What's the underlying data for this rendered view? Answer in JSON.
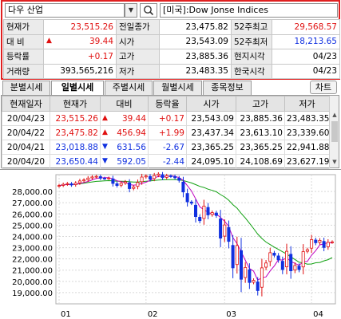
{
  "search": {
    "name": "다우 산업",
    "description": "[미국]:Dow Jonse Indices"
  },
  "quote": {
    "rows": [
      [
        {
          "label": "현재가"
        },
        {
          "value": "23,515.26",
          "color": "red"
        },
        {
          "label": "전일종가"
        },
        {
          "value": "23,475.82"
        },
        {
          "label": "52주최고"
        },
        {
          "value": "29,568.57",
          "color": "red"
        }
      ],
      [
        {
          "label": "대 비"
        },
        {
          "value": "39.44",
          "color": "red",
          "arrow": "▲"
        },
        {
          "label": "시가"
        },
        {
          "value": "23,543.09"
        },
        {
          "label": "52주최저"
        },
        {
          "value": "18,213.65",
          "color": "blue"
        }
      ],
      [
        {
          "label": "등락률"
        },
        {
          "value": "+0.17",
          "color": "red"
        },
        {
          "label": "고가"
        },
        {
          "value": "23,885.36"
        },
        {
          "label": "현지시각"
        },
        {
          "value": "04/23"
        }
      ],
      [
        {
          "label": "거래량"
        },
        {
          "value": "393,565,216"
        },
        {
          "label": "저가"
        },
        {
          "value": "23,483.35"
        },
        {
          "label": "한국시각"
        },
        {
          "value": "04/23"
        }
      ]
    ]
  },
  "tabs": {
    "items": [
      "분별시세",
      "일별시세",
      "주별시세",
      "월별시세",
      "종목정보"
    ],
    "active": 1,
    "chart_button": "차트"
  },
  "daily": {
    "headers": [
      "현재일자",
      "현재가",
      "대비",
      "등락율",
      "시가",
      "고가",
      "저가"
    ],
    "rows": [
      {
        "date": "20/04/23",
        "close": "23,515.26",
        "arrow": "▲",
        "change": "39.44",
        "rate": "+0.17",
        "open": "23,543.09",
        "high": "23,885.36",
        "low": "23,483.35",
        "color": "red"
      },
      {
        "date": "20/04/22",
        "close": "23,475.82",
        "arrow": "▲",
        "change": "456.94",
        "rate": "+1.99",
        "open": "23,437.34",
        "high": "23,613.10",
        "low": "23,339.60",
        "color": "red"
      },
      {
        "date": "20/04/21",
        "close": "23,018.88",
        "arrow": "▼",
        "change": "631.56",
        "rate": "-2.67",
        "open": "23,365.25",
        "high": "23,365.25",
        "low": "22,941.88",
        "color": "blue"
      },
      {
        "date": "20/04/20",
        "close": "23,650.44",
        "arrow": "▼",
        "change": "592.05",
        "rate": "-2.44",
        "open": "24,095.10",
        "high": "24,108.69",
        "low": "23,627.19",
        "color": "blue"
      }
    ]
  },
  "colors": {
    "up": "#e01010",
    "down": "#1030e0",
    "ma_short": "#c000c0",
    "ma_long": "#10a010",
    "highlight_border": "#e02020"
  },
  "chart_data": {
    "type": "candlestick",
    "y_ticks": [
      "28,000.00",
      "27,000.00",
      "26,000.00",
      "25,000.00",
      "24,000.00",
      "23,000.00",
      "22,000.00",
      "21,000.00",
      "20,000.00",
      "19,000.00"
    ],
    "ylim": [
      18000,
      29500
    ],
    "x_ticks": [
      "01",
      "02",
      "03",
      "04"
    ],
    "close_series": [
      28538,
      28635,
      28703,
      28583,
      28745,
      28939,
      29030,
      29196,
      29297,
      29348,
      29186,
      29160,
      29196,
      28722,
      28535,
      28734,
      28859,
      28256,
      28399,
      28807,
      29290,
      29380,
      29102,
      29423,
      29551,
      29232,
      29398,
      29348,
      29219,
      28992,
      27960,
      27081,
      26957,
      25766,
      25409,
      26703,
      25917,
      26121,
      25865,
      23851,
      25018,
      23553,
      21200,
      23186,
      20188,
      21237,
      19899,
      20087,
      19173,
      21200,
      21636,
      22552,
      22327,
      21917,
      21052,
      22679,
      20943,
      21413,
      21052,
      22653,
      22819,
      23719,
      23433,
      23650,
      23019,
      23476,
      23515
    ],
    "ma_short_period": 5,
    "ma_long_period": 20
  }
}
